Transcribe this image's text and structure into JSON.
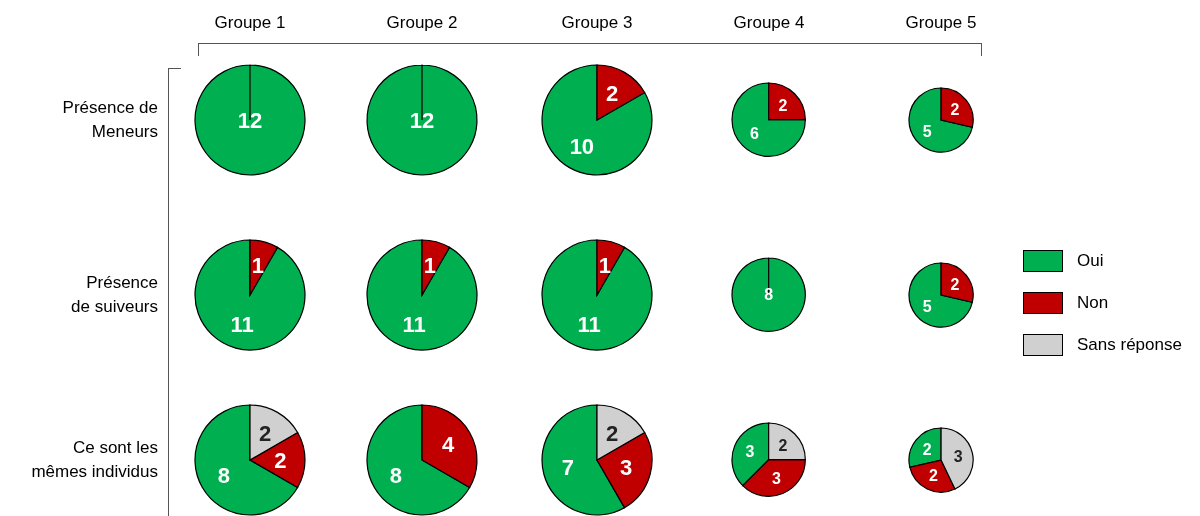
{
  "chart_data": [
    {
      "type": "pie",
      "title": "Groupe 1",
      "ylabel": "Présence de\nMeneurs",
      "values": [
        12
      ],
      "colors": [
        "#00b050"
      ],
      "data_labels": true
    },
    {
      "type": "pie",
      "title": "Groupe 2",
      "values": [
        12
      ],
      "colors": [
        "#00b050"
      ],
      "data_labels": true
    },
    {
      "type": "pie",
      "title": "Groupe 3",
      "values": [
        10,
        2
      ],
      "colors": [
        "#00b050",
        "#c00000"
      ],
      "data_labels": true
    },
    {
      "type": "pie",
      "title": "Groupe 4",
      "values": [
        6,
        2
      ],
      "colors": [
        "#00b050",
        "#c00000"
      ],
      "data_labels": true
    },
    {
      "type": "pie",
      "title": "Groupe 5",
      "values": [
        5,
        2
      ],
      "colors": [
        "#00b050",
        "#c00000"
      ],
      "data_labels": true
    },
    {
      "type": "pie",
      "ylabel": "Présence\nde suiveurs",
      "values": [
        11,
        1
      ],
      "colors": [
        "#00b050",
        "#c00000"
      ],
      "data_labels": true
    },
    {
      "type": "pie",
      "values": [
        11,
        1
      ],
      "colors": [
        "#00b050",
        "#c00000"
      ],
      "data_labels": true
    },
    {
      "type": "pie",
      "values": [
        11,
        1
      ],
      "colors": [
        "#00b050",
        "#c00000"
      ],
      "data_labels": true
    },
    {
      "type": "pie",
      "values": [
        8
      ],
      "colors": [
        "#00b050"
      ],
      "data_labels": true
    },
    {
      "type": "pie",
      "values": [
        5,
        2
      ],
      "colors": [
        "#00b050",
        "#c00000"
      ],
      "data_labels": true
    },
    {
      "type": "pie",
      "ylabel": "Ce sont les\nmêmes individus",
      "values": [
        8,
        2,
        2
      ],
      "colors": [
        "#00b050",
        "#c00000",
        "#d0d0d0"
      ],
      "data_labels": true
    },
    {
      "type": "pie",
      "values": [
        8,
        4
      ],
      "colors": [
        "#00b050",
        "#c00000"
      ],
      "data_labels": true
    },
    {
      "type": "pie",
      "values": [
        7,
        3,
        2
      ],
      "colors": [
        "#00b050",
        "#c00000",
        "#d0d0d0"
      ],
      "data_labels": true
    },
    {
      "type": "pie",
      "values": [
        3,
        3,
        2
      ],
      "colors": [
        "#00b050",
        "#c00000",
        "#d0d0d0"
      ],
      "data_labels": true
    },
    {
      "type": "pie",
      "categories": [
        "Oui",
        "Non",
        "Sans réponse"
      ],
      "values": [
        2,
        2,
        3
      ],
      "colors": [
        "#00b050",
        "#c00000",
        "#d0d0d0"
      ],
      "data_labels": true,
      "legend": "right"
    }
  ]
}
